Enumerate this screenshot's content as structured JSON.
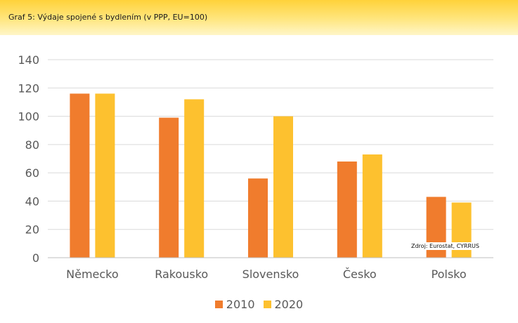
{
  "header": {
    "title": "Graf 5: Výdaje spojené s bydlením (v PPP, EU=100)"
  },
  "source": "Zdroj: Eurostat, CYRRUS",
  "colors": {
    "series_2010": "#f07c2d",
    "series_2020": "#fdc12f",
    "grid": "#d9d9d9",
    "axis_text": "#595959"
  },
  "chart_data": {
    "type": "bar",
    "title": "",
    "xlabel": "",
    "ylabel": "",
    "categories": [
      "Německo",
      "Rakousko",
      "Slovensko",
      "Česko",
      "Polsko"
    ],
    "series": [
      {
        "name": "2010",
        "values": [
          116,
          99,
          56,
          68,
          43
        ]
      },
      {
        "name": "2020",
        "values": [
          116,
          112,
          100,
          73,
          39
        ]
      }
    ],
    "ylim": [
      0,
      140
    ],
    "yticks": [
      "0",
      "20",
      "40",
      "60",
      "80",
      "100",
      "120",
      "140"
    ],
    "grid": true,
    "legend_position": "bottom"
  }
}
